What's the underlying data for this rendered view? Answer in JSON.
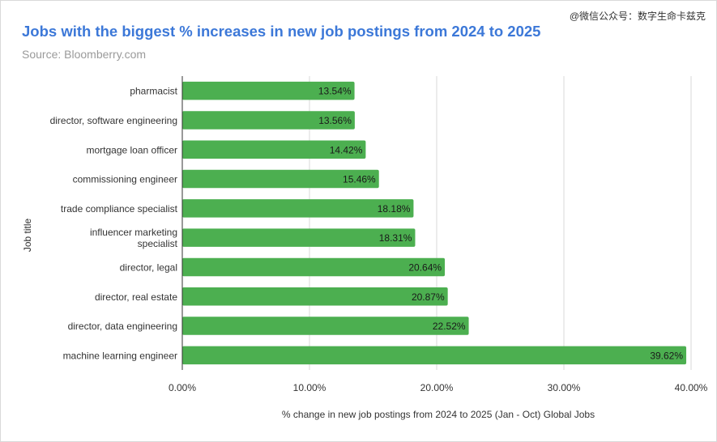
{
  "header": {
    "title": "Jobs with the biggest % increases in new job postings from 2024 to 2025",
    "subtitle": "Source: Bloomberry.com",
    "watermark": "@微信公众号：数字生命卡兹克"
  },
  "colors": {
    "bar": "#4caf50",
    "title": "#3c78d8",
    "grid": "#d9d9d9",
    "axis": "#333333"
  },
  "chart_data": {
    "type": "bar",
    "orientation": "horizontal",
    "title": "Jobs with the biggest % increases in new job postings from 2024 to 2025",
    "subtitle": "Source: Bloomberry.com",
    "xlabel": "% change in new job postings from 2024 to 2025 (Jan - Oct) Global Jobs",
    "ylabel": "Job title",
    "categories": [
      [
        "pharmacist"
      ],
      [
        "director, software engineering"
      ],
      [
        "mortgage loan officer"
      ],
      [
        "commissioning engineer"
      ],
      [
        "trade compliance specialist"
      ],
      [
        "influencer marketing",
        "specialist"
      ],
      [
        "director, legal"
      ],
      [
        "director, real estate"
      ],
      [
        "director, data engineering"
      ],
      [
        "machine learning engineer"
      ]
    ],
    "values": [
      13.54,
      13.56,
      14.42,
      15.46,
      18.18,
      18.31,
      20.64,
      20.87,
      22.52,
      39.62
    ],
    "data_labels": [
      "13.54%",
      "13.56%",
      "14.42%",
      "15.46%",
      "18.18%",
      "18.31%",
      "20.64%",
      "20.87%",
      "22.52%",
      "39.62%"
    ],
    "xlim": [
      0,
      40
    ],
    "xticks": [
      0,
      10,
      20,
      30,
      40
    ],
    "xtick_labels": [
      "0.00%",
      "10.00%",
      "20.00%",
      "30.00%",
      "40.00%"
    ],
    "grid": true,
    "legend": "none"
  }
}
